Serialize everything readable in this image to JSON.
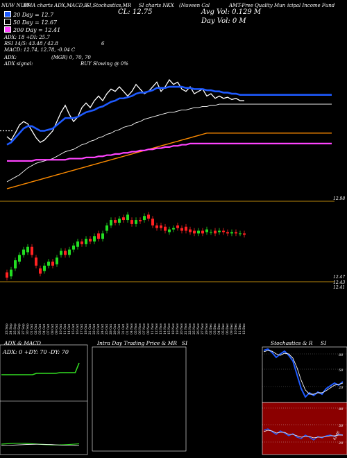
{
  "header": {
    "left": "NUW NUW",
    "h1": "EMA charts ADX,MACD,B",
    "h2": "SI,Stochastics,MR",
    "h3": "SI charts NKX",
    "h4": "(Nuveen Cal",
    "h5": "AMT-Free Quality Mun",
    "h6": "icipal Income Fund",
    "cl": "CL: 12.75",
    "avg_vol": "Avg Vol: 0.129 M",
    "day_vol": "Day Vol: 0   M"
  },
  "legend": [
    {
      "label": "20 Day = 12.7",
      "color": "#1e5aff"
    },
    {
      "label": "50 Day = 12.67",
      "color": "#000000"
    },
    {
      "label": "200 Day = 12.41",
      "color": "#ff44ff"
    }
  ],
  "indicators": {
    "l1": "ADX: 18   +DI: 25.7",
    "l2": "RSI 14/5: 43.48 / 42.8",
    "l2b": "6",
    "l3": "MACD: 12.74, 12.78, -0.04  C",
    "l4": "ADX:",
    "l4b": "(MGR) 0, 70, 70",
    "l5": "ADX  signal:",
    "l5b": "BUY Slowing @ 0%"
  },
  "price_labels": {
    "top": "12.98",
    "b1": "12.47",
    "b2": "12.43",
    "b3": "12.41"
  },
  "dates": [
    "23 Sep",
    "24 Sep",
    "25 Sep",
    "26 Sep",
    "27 Sep",
    "30 Sep",
    "01 Oct",
    "02 Oct",
    "03 Oct",
    "04 Oct",
    "07 Oct",
    "08 Oct",
    "09 Oct",
    "10 Oct",
    "11 Oct",
    "14 Oct",
    "15 Oct",
    "16 Oct",
    "17 Oct",
    "18 Oct",
    "21 Oct",
    "22 Oct",
    "23 Oct",
    "24 Oct",
    "25 Oct",
    "28 Oct",
    "29 Oct",
    "30 Oct",
    "31 Oct",
    "01 Nov",
    "04 Nov",
    "05 Nov",
    "06 Nov",
    "07 Nov",
    "08 Nov",
    "11 Nov",
    "12 Nov",
    "13 Nov",
    "14 Nov",
    "15 Nov",
    "18 Nov",
    "19 Nov",
    "20 Nov",
    "21 Nov",
    "22 Nov",
    "25 Nov",
    "26 Nov",
    "27 Nov",
    "29 Nov",
    "02 Dec",
    "03 Dec",
    "04 Dec",
    "05 Dec",
    "06 Dec",
    "09 Dec",
    "10 Dec",
    "11 Dec",
    "12 Dec"
  ],
  "panes": {
    "adx_title": "ADX  & MACD",
    "adx_text": "ADX: 0  +DY: 70  -DY: 70",
    "intra_title": "Intra  Day Trading Price  & MR",
    "intra_title2": "SI",
    "stoch_title": "Stochastics & R",
    "stoch_title2": "SI",
    "stoch_ticks": [
      "80",
      "50",
      "20"
    ],
    "rsi_ticks": [
      "80",
      "50",
      "20"
    ],
    "rsi_value": "42.86"
  },
  "chart_data": [
    {
      "type": "candlestick",
      "ylabel": "",
      "candles": [
        {
          "o": 12.47,
          "c": 12.43
        },
        {
          "o": 12.44,
          "c": 12.49
        },
        {
          "o": 12.5,
          "c": 12.56
        },
        {
          "o": 12.55,
          "c": 12.6
        },
        {
          "o": 12.6,
          "c": 12.64
        },
        {
          "o": 12.62,
          "c": 12.66
        },
        {
          "o": 12.66,
          "c": 12.6
        },
        {
          "o": 12.58,
          "c": 12.52
        },
        {
          "o": 12.5,
          "c": 12.46
        },
        {
          "o": 12.48,
          "c": 12.52
        },
        {
          "o": 12.52,
          "c": 12.55
        },
        {
          "o": 12.55,
          "c": 12.52
        },
        {
          "o": 12.53,
          "c": 12.58
        },
        {
          "o": 12.6,
          "c": 12.63
        },
        {
          "o": 12.63,
          "c": 12.6
        },
        {
          "o": 12.6,
          "c": 12.64
        },
        {
          "o": 12.64,
          "c": 12.67
        },
        {
          "o": 12.66,
          "c": 12.7
        },
        {
          "o": 12.7,
          "c": 12.68
        },
        {
          "o": 12.68,
          "c": 12.72
        },
        {
          "o": 12.72,
          "c": 12.7
        },
        {
          "o": 12.7,
          "c": 12.74
        },
        {
          "o": 12.76,
          "c": 12.72
        },
        {
          "o": 12.72,
          "c": 12.76
        },
        {
          "o": 12.78,
          "c": 12.82
        },
        {
          "o": 12.82,
          "c": 12.86
        },
        {
          "o": 12.86,
          "c": 12.84
        },
        {
          "o": 12.84,
          "c": 12.87
        },
        {
          "o": 12.88,
          "c": 12.86
        },
        {
          "o": 12.86,
          "c": 12.9
        },
        {
          "o": 12.86,
          "c": 12.83
        },
        {
          "o": 12.83,
          "c": 12.86
        },
        {
          "o": 12.86,
          "c": 12.85
        },
        {
          "o": 12.86,
          "c": 12.89
        },
        {
          "o": 12.9,
          "c": 12.87
        },
        {
          "o": 12.87,
          "c": 12.82
        },
        {
          "o": 12.82,
          "c": 12.8
        },
        {
          "o": 12.82,
          "c": 12.8
        },
        {
          "o": 12.81,
          "c": 12.78
        },
        {
          "o": 12.77,
          "c": 12.79
        },
        {
          "o": 12.79,
          "c": 12.8
        },
        {
          "o": 12.82,
          "c": 12.8
        },
        {
          "o": 12.8,
          "c": 12.78
        },
        {
          "o": 12.81,
          "c": 12.78
        },
        {
          "o": 12.79,
          "c": 12.77
        },
        {
          "o": 12.78,
          "c": 12.76
        },
        {
          "o": 12.76,
          "c": 12.78
        },
        {
          "o": 12.78,
          "c": 12.76
        },
        {
          "o": 12.77,
          "c": 12.79
        },
        {
          "o": 12.77,
          "c": 12.77
        },
        {
          "o": 12.78,
          "c": 12.76
        },
        {
          "o": 12.77,
          "c": 12.78
        },
        {
          "o": 12.78,
          "c": 12.77
        },
        {
          "o": 12.77,
          "c": 12.76
        },
        {
          "o": 12.76,
          "c": 12.77
        },
        {
          "o": 12.77,
          "c": 12.76
        },
        {
          "o": 12.76,
          "c": 12.76
        },
        {
          "o": 12.76,
          "c": 12.75
        }
      ],
      "ylim": [
        12.4,
        13.0
      ]
    },
    {
      "type": "line",
      "series": [
        {
          "values": [
            0.45,
            0.42,
            0.48,
            0.55,
            0.58,
            0.56,
            0.5,
            0.44,
            0.4,
            0.42,
            0.46,
            0.5,
            0.58,
            0.66,
            0.72,
            0.64,
            0.58,
            0.62,
            0.7,
            0.74,
            0.7,
            0.76,
            0.8,
            0.76,
            0.82,
            0.86,
            0.84,
            0.88,
            0.84,
            0.8,
            0.84,
            0.9,
            0.86,
            0.82,
            0.84,
            0.88,
            0.92,
            0.84,
            0.88,
            0.94,
            0.9,
            0.92,
            0.86,
            0.84,
            0.88,
            0.82,
            0.84,
            0.86,
            0.8,
            0.82,
            0.78,
            0.8,
            0.78,
            0.79,
            0.77,
            0.78,
            0.76,
            0.76
          ]
        },
        {
          "values": [
            0.38,
            0.4,
            0.44,
            0.48,
            0.52,
            0.54,
            0.54,
            0.52,
            0.5,
            0.5,
            0.51,
            0.52,
            0.55,
            0.58,
            0.61,
            0.61,
            0.61,
            0.62,
            0.64,
            0.66,
            0.67,
            0.68,
            0.7,
            0.71,
            0.73,
            0.75,
            0.76,
            0.78,
            0.78,
            0.79,
            0.8,
            0.82,
            0.83,
            0.83,
            0.84,
            0.85,
            0.87,
            0.87,
            0.87,
            0.88,
            0.88,
            0.88,
            0.88,
            0.87,
            0.87,
            0.86,
            0.86,
            0.86,
            0.85,
            0.85,
            0.84,
            0.84,
            0.83,
            0.83,
            0.82,
            0.82,
            0.81,
            0.81
          ]
        },
        {
          "values": [
            0.06,
            0.08,
            0.1,
            0.12,
            0.15,
            0.18,
            0.2,
            0.22,
            0.23,
            0.24,
            0.25,
            0.26,
            0.28,
            0.3,
            0.32,
            0.33,
            0.34,
            0.36,
            0.38,
            0.39,
            0.41,
            0.42,
            0.44,
            0.45,
            0.47,
            0.48,
            0.5,
            0.51,
            0.53,
            0.54,
            0.55,
            0.57,
            0.58,
            0.6,
            0.61,
            0.62,
            0.63,
            0.64,
            0.65,
            0.66,
            0.66,
            0.67,
            0.68,
            0.68,
            0.69,
            0.7,
            0.7,
            0.71,
            0.71,
            0.72,
            0.72,
            0.73,
            0.73,
            0.73,
            0.73,
            0.73,
            0.73,
            0.73
          ]
        },
        {
          "values": [
            0.0,
            0.01,
            0.02,
            0.03,
            0.04,
            0.05,
            0.06,
            0.07,
            0.08,
            0.09,
            0.1,
            0.11,
            0.12,
            0.13,
            0.14,
            0.15,
            0.16,
            0.17,
            0.18,
            0.19,
            0.2,
            0.21,
            0.22,
            0.23,
            0.24,
            0.25,
            0.26,
            0.27,
            0.28,
            0.29,
            0.3,
            0.31,
            0.32,
            0.33,
            0.34,
            0.35,
            0.36,
            0.37,
            0.38,
            0.39,
            0.4,
            0.41,
            0.42,
            0.43,
            0.44,
            0.45,
            0.46,
            0.47,
            0.48,
            0.48,
            0.48,
            0.48,
            0.48,
            0.48,
            0.48,
            0.48,
            0.48,
            0.48
          ]
        },
        {
          "values": [
            0.24,
            0.24,
            0.24,
            0.24,
            0.24,
            0.24,
            0.24,
            0.25,
            0.25,
            0.25,
            0.25,
            0.25,
            0.25,
            0.25,
            0.25,
            0.26,
            0.26,
            0.26,
            0.26,
            0.27,
            0.27,
            0.27,
            0.28,
            0.28,
            0.29,
            0.29,
            0.3,
            0.3,
            0.31,
            0.31,
            0.32,
            0.32,
            0.33,
            0.33,
            0.34,
            0.34,
            0.35,
            0.35,
            0.36,
            0.36,
            0.37,
            0.37,
            0.38,
            0.38,
            0.39,
            0.39,
            0.39,
            0.39,
            0.39,
            0.39,
            0.39,
            0.39,
            0.39,
            0.39,
            0.39,
            0.39,
            0.39,
            0.39
          ]
        }
      ]
    }
  ]
}
